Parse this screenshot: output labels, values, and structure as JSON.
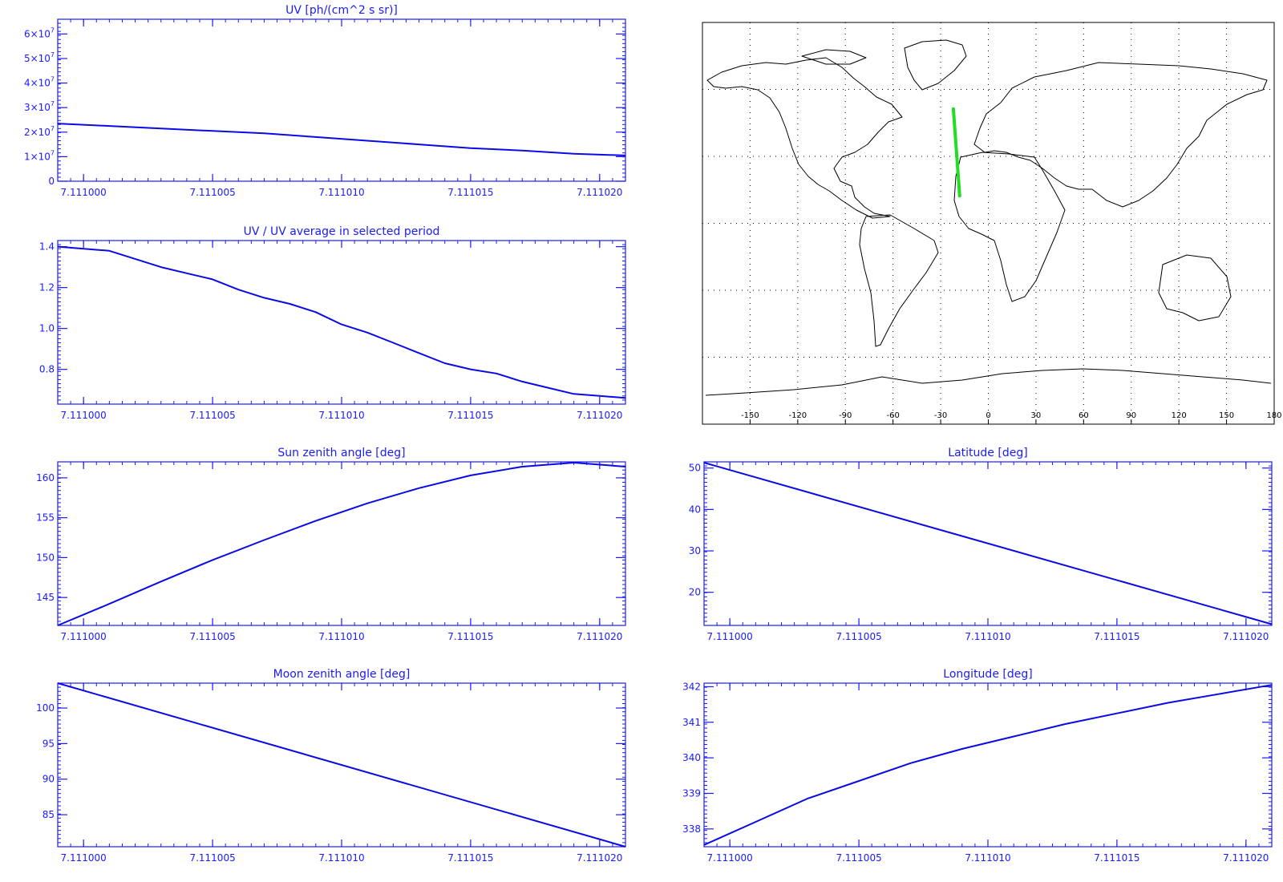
{
  "colors": {
    "axis": "#1a1aff",
    "trace": "#0a0ae6",
    "map_line": "#000000",
    "track": "#22dd22"
  },
  "chart_data": [
    {
      "id": "uv",
      "type": "line",
      "title": "UV [ph/(cm^2 s sr)]",
      "xlim": [
        7.110999,
        7.111021
      ],
      "ylim": [
        0,
        66000000.0
      ],
      "xticks": [
        7.111,
        7.111005,
        7.11101,
        7.111015,
        7.11102
      ],
      "xtick_labels": [
        "7.111000",
        "7.111005",
        "7.111010",
        "7.111015",
        "7.111020"
      ],
      "yticks": [
        0,
        10000000.0,
        20000000.0,
        30000000.0,
        40000000.0,
        50000000.0,
        60000000.0
      ],
      "ytick_labels": [
        {
          "base": "0",
          "exp": ""
        },
        {
          "base": "1×10",
          "exp": "7"
        },
        {
          "base": "2×10",
          "exp": "7"
        },
        {
          "base": "3×10",
          "exp": "7"
        },
        {
          "base": "4×10",
          "exp": "7"
        },
        {
          "base": "5×10",
          "exp": "7"
        },
        {
          "base": "6×10",
          "exp": "7"
        }
      ],
      "x": [
        7.110999,
        7.111001,
        7.111003,
        7.111005,
        7.111007,
        7.111009,
        7.111011,
        7.111013,
        7.111015,
        7.111017,
        7.111019,
        7.111021
      ],
      "y": [
        23500000.0,
        22500000.0,
        21500000.0,
        20500000.0,
        19500000.0,
        18000000.0,
        16500000.0,
        15000000.0,
        13500000.0,
        12500000.0,
        11200000.0,
        10500000.0
      ]
    },
    {
      "id": "ratio",
      "type": "line",
      "title": "UV / UV average in selected period",
      "xlim": [
        7.110999,
        7.111021
      ],
      "ylim": [
        0.63,
        1.43
      ],
      "xticks": [
        7.111,
        7.111005,
        7.11101,
        7.111015,
        7.11102
      ],
      "xtick_labels": [
        "7.111000",
        "7.111005",
        "7.111010",
        "7.111015",
        "7.111020"
      ],
      "yticks": [
        0.8,
        1.0,
        1.2,
        1.4
      ],
      "ytick_labels": [
        "0.8",
        "1.0",
        "1.2",
        "1.4"
      ],
      "x": [
        7.110999,
        7.111001,
        7.111002,
        7.111003,
        7.111004,
        7.111005,
        7.111006,
        7.111007,
        7.111008,
        7.111009,
        7.11101,
        7.111011,
        7.111012,
        7.111013,
        7.111014,
        7.111015,
        7.111016,
        7.111017,
        7.111018,
        7.111019,
        7.11102,
        7.111021
      ],
      "y": [
        1.4,
        1.38,
        1.34,
        1.3,
        1.27,
        1.24,
        1.19,
        1.15,
        1.12,
        1.08,
        1.02,
        0.98,
        0.93,
        0.88,
        0.83,
        0.8,
        0.78,
        0.74,
        0.71,
        0.68,
        0.67,
        0.66
      ]
    },
    {
      "id": "sza",
      "type": "line",
      "title": "Sun zenith angle [deg]",
      "xlim": [
        7.110999,
        7.111021
      ],
      "ylim": [
        141.5,
        162
      ],
      "xticks": [
        7.111,
        7.111005,
        7.11101,
        7.111015,
        7.11102
      ],
      "xtick_labels": [
        "7.111000",
        "7.111005",
        "7.111010",
        "7.111015",
        "7.111020"
      ],
      "yticks": [
        145,
        150,
        155,
        160
      ],
      "ytick_labels": [
        "145",
        "150",
        "155",
        "160"
      ],
      "x": [
        7.110999,
        7.111001,
        7.111003,
        7.111005,
        7.111007,
        7.111009,
        7.111011,
        7.111013,
        7.111015,
        7.111017,
        7.111019,
        7.111021
      ],
      "y": [
        141.5,
        144.2,
        147.0,
        149.7,
        152.2,
        154.6,
        156.8,
        158.7,
        160.3,
        161.4,
        161.9,
        161.4
      ]
    },
    {
      "id": "mza",
      "type": "line",
      "title": "Moon zenith angle [deg]",
      "xlim": [
        7.110999,
        7.111021
      ],
      "ylim": [
        80.5,
        103.5
      ],
      "xticks": [
        7.111,
        7.111005,
        7.11101,
        7.111015,
        7.11102
      ],
      "xtick_labels": [
        "7.111000",
        "7.111005",
        "7.111010",
        "7.111015",
        "7.111020"
      ],
      "yticks": [
        85,
        90,
        95,
        100
      ],
      "ytick_labels": [
        "85",
        "90",
        "95",
        "100"
      ],
      "x": [
        7.110999,
        7.111021
      ],
      "y": [
        103.5,
        80.5
      ]
    },
    {
      "id": "lat",
      "type": "line",
      "title": "Latitude [deg]",
      "xlim": [
        7.110999,
        7.111021
      ],
      "ylim": [
        12,
        51.5
      ],
      "xticks": [
        7.111,
        7.111005,
        7.11101,
        7.111015,
        7.11102
      ],
      "xtick_labels": [
        "7.111000",
        "7.111005",
        "7.111010",
        "7.111015",
        "7.111020"
      ],
      "yticks": [
        20,
        30,
        40,
        50
      ],
      "ytick_labels": [
        "20",
        "30",
        "40",
        "50"
      ],
      "x": [
        7.110999,
        7.111021
      ],
      "y": [
        51.3,
        12.3
      ]
    },
    {
      "id": "lon",
      "type": "line",
      "title": "Longitude [deg]",
      "xlim": [
        7.110999,
        7.111021
      ],
      "ylim": [
        337.5,
        342.1
      ],
      "xticks": [
        7.111,
        7.111005,
        7.11101,
        7.111015,
        7.11102
      ],
      "xtick_labels": [
        "7.111000",
        "7.111005",
        "7.111010",
        "7.111015",
        "7.111020"
      ],
      "yticks": [
        338,
        339,
        340,
        341,
        342
      ],
      "ytick_labels": [
        "338",
        "339",
        "340",
        "341",
        "342"
      ],
      "x": [
        7.110999,
        7.111001,
        7.111003,
        7.111005,
        7.111007,
        7.111009,
        7.111011,
        7.111013,
        7.111015,
        7.111017,
        7.111019,
        7.111021
      ],
      "y": [
        337.55,
        338.2,
        338.85,
        339.35,
        339.85,
        340.25,
        340.6,
        340.95,
        341.25,
        341.55,
        341.8,
        342.05
      ]
    },
    {
      "id": "map",
      "type": "map",
      "projection": "equirectangular",
      "xlim": [
        -180,
        180
      ],
      "ylim": [
        -90,
        90
      ],
      "xticks": [
        -150,
        -120,
        -90,
        -60,
        -30,
        0,
        30,
        60,
        90,
        120,
        150,
        180
      ],
      "xtick_labels": [
        "-150",
        "-120",
        "-90",
        "-60",
        "-30",
        "0",
        "30",
        "60",
        "90",
        "120",
        "150",
        "180"
      ],
      "grid": true,
      "track": {
        "lon": [
          -22,
          -18
        ],
        "lat": [
          51.3,
          12.3
        ]
      }
    }
  ]
}
